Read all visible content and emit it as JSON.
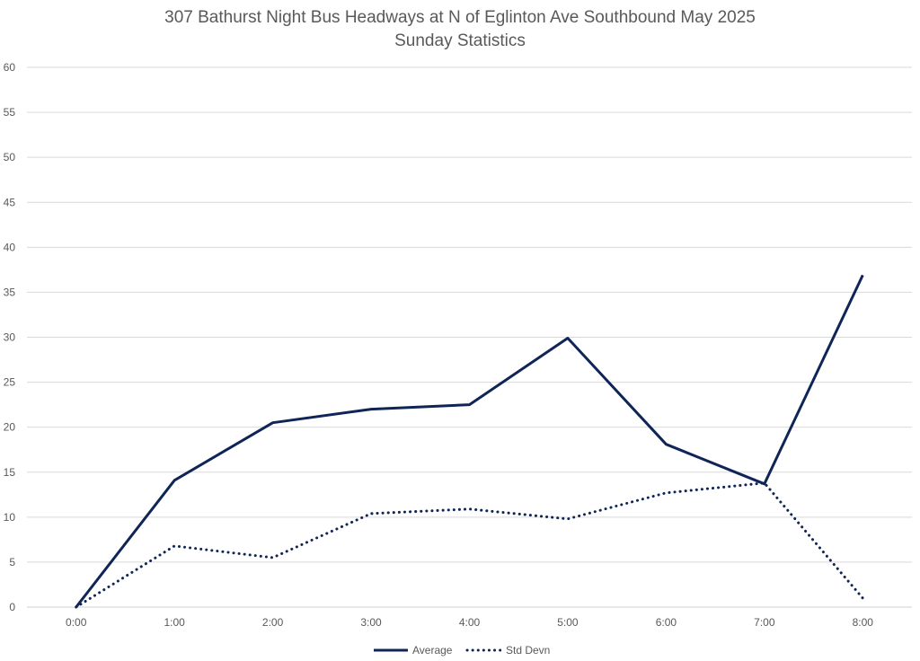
{
  "chart_data": {
    "type": "line",
    "title": "307 Bathurst Night Bus Headways at N of Eglinton Ave Southbound May 2025",
    "subtitle": "Sunday Statistics",
    "xlabel": "",
    "ylabel": "",
    "categories": [
      "0:00",
      "1:00",
      "2:00",
      "3:00",
      "4:00",
      "5:00",
      "6:00",
      "7:00",
      "8:00"
    ],
    "ylim": [
      0,
      60
    ],
    "yticks": [
      0,
      5,
      10,
      15,
      20,
      25,
      30,
      35,
      40,
      45,
      50,
      55,
      60
    ],
    "grid": true,
    "legend_position": "bottom",
    "series": [
      {
        "name": "Average",
        "style": "solid",
        "color": "#0f2557",
        "values": [
          0,
          14.1,
          20.5,
          22.0,
          22.5,
          29.9,
          18.1,
          13.7,
          36.9
        ]
      },
      {
        "name": "Std Devn",
        "style": "dotted",
        "color": "#0f2557",
        "values": [
          0,
          6.8,
          5.5,
          10.4,
          10.9,
          9.8,
          12.7,
          13.8,
          1.0
        ]
      }
    ]
  }
}
